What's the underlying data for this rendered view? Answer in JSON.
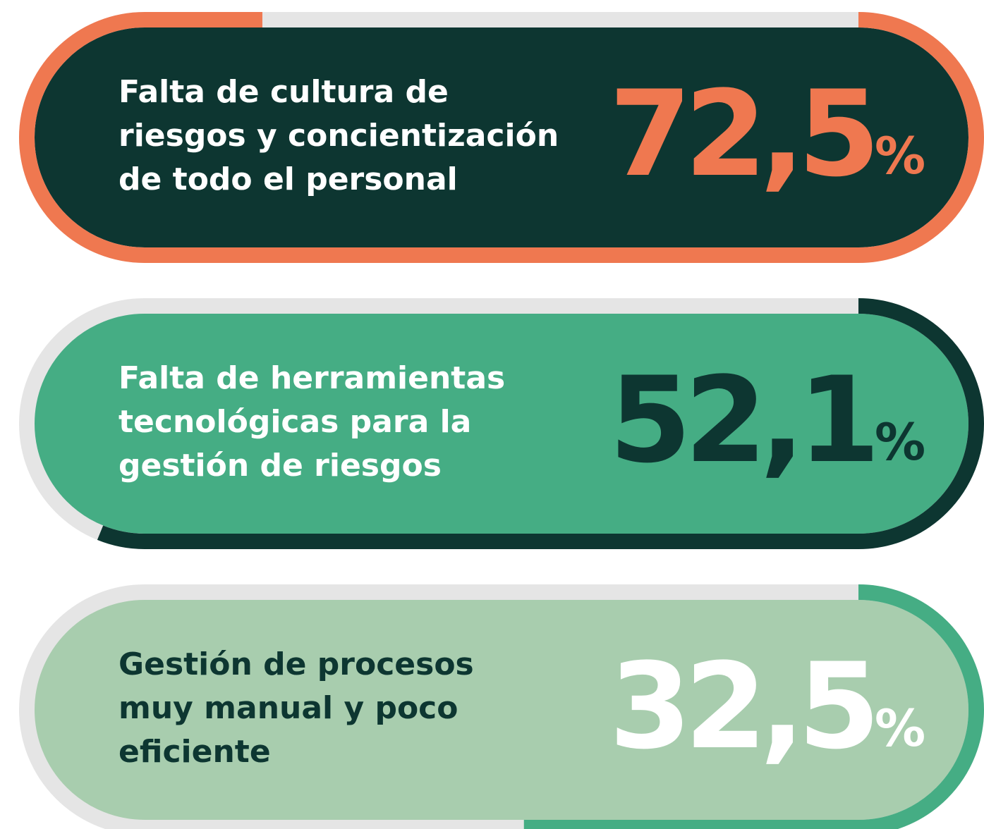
{
  "chart_data": {
    "type": "progress",
    "categories": [
      [
        "Falta de cultura de",
        "riesgos y concientización",
        "de todo el personal"
      ],
      [
        "Falta de herramientas",
        "tecnológicas para la",
        "gestión de riesgos"
      ],
      [
        "Gestión de procesos",
        "muy manual y poco",
        "eficiente"
      ]
    ],
    "values": [
      72.5,
      52.1,
      32.5
    ],
    "value_labels": [
      "72,5",
      "52,1",
      "32,5"
    ],
    "unit": "%",
    "ylim": [
      0,
      100
    ],
    "track_color": "#e5e5e5",
    "colors": [
      {
        "fill": "#0d3631",
        "ring": "#ef7850",
        "text": "#ffffff",
        "number": "#ef7850"
      },
      {
        "fill": "#45ad84",
        "ring": "#0d3631",
        "text": "#ffffff",
        "number": "#0d3631"
      },
      {
        "fill": "#a8cdae",
        "ring": "#45ad84",
        "text": "#0d3631",
        "number": "#ffffff"
      }
    ]
  }
}
